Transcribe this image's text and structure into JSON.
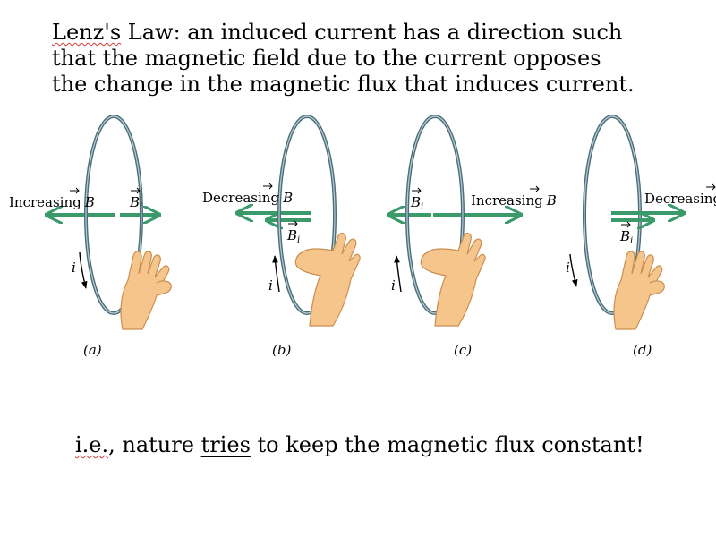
{
  "heading": {
    "term": "Lenz's",
    "rest_line1": " Law: an induced current has a direction such",
    "line2": "that the magnetic field due to the current opposes",
    "line3": "the change in the magnetic flux that induces current."
  },
  "panels": [
    {
      "id": "a",
      "caption": "(a)",
      "flux_label": "Increasing",
      "field_symbol": "B",
      "induced_symbol": "B",
      "induced_sub": "i",
      "current_symbol": "i"
    },
    {
      "id": "b",
      "caption": "(b)",
      "flux_label": "Decreasing",
      "field_symbol": "B",
      "induced_symbol": "B",
      "induced_sub": "i",
      "current_symbol": "i"
    },
    {
      "id": "c",
      "caption": "(c)",
      "flux_label": "Increasing",
      "field_symbol": "B",
      "induced_symbol": "B",
      "induced_sub": "i",
      "current_symbol": "i"
    },
    {
      "id": "d",
      "caption": "(d)",
      "flux_label": "Decreasing",
      "field_symbol": "B",
      "induced_symbol": "B",
      "induced_sub": "i",
      "current_symbol": "i"
    }
  ],
  "colors": {
    "arrow": "#3a9a6a",
    "loop": "#4a6e7a",
    "hand": "#f6c58c",
    "hand_outline": "#c98e4e"
  },
  "footer": {
    "ie": "i.e.",
    "before": ", nature ",
    "emph": "tries",
    "after": " to keep the magnetic flux constant!"
  }
}
